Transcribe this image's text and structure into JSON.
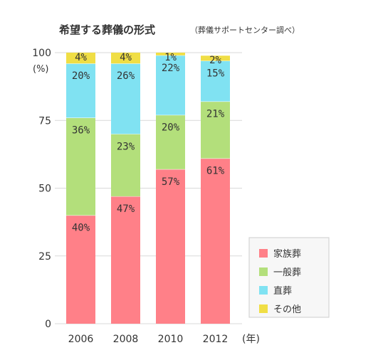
{
  "chart_data": {
    "type": "bar",
    "stacked": true,
    "title": "希望する葬儀の形式",
    "subtitle": "（葬儀サポートセンター調べ）",
    "categories": [
      "2006",
      "2008",
      "2010",
      "2012"
    ],
    "x_unit": "(年)",
    "y_unit": "(%)",
    "ylim": [
      0,
      100
    ],
    "yticks": [
      0,
      25,
      50,
      75,
      100
    ],
    "grid": true,
    "legend_position": "bottom-right",
    "series": [
      {
        "name": "家族葬",
        "values": [
          40,
          47,
          57,
          61
        ],
        "labels": [
          "40%",
          "47%",
          "57%",
          "61%"
        ],
        "color": "#ff8088"
      },
      {
        "name": "一般葬",
        "values": [
          36,
          23,
          20,
          21
        ],
        "labels": [
          "36%",
          "23%",
          "20%",
          "21%"
        ],
        "color": "#b3df7b"
      },
      {
        "name": "直葬",
        "values": [
          20,
          26,
          22,
          15
        ],
        "labels": [
          "20%",
          "26%",
          "22%",
          "15%"
        ],
        "color": "#80e2f2"
      },
      {
        "name": "その他",
        "values": [
          4,
          4,
          1,
          2
        ],
        "labels": [
          "4%",
          "4%",
          "1%",
          "2%"
        ],
        "color": "#f0de45"
      }
    ]
  },
  "colors": {
    "background": "#ffffff",
    "grid": "#d9d9d9",
    "text": "#333333",
    "legend_background": "#f7f7f7",
    "legend_border": "#cccccc"
  }
}
